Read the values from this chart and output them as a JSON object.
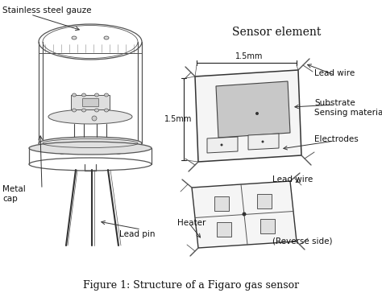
{
  "title": "Figure 1: Structure of a Figaro gas sensor",
  "title_fontsize": 9,
  "bg_color": "#ffffff",
  "sensor_element_label": "Sensor element",
  "label_stainless": "Stainless steel gauze",
  "label_metal_cap": "Metal\ncap",
  "label_lead_pin": "Lead pin",
  "label_lead_wire": "Lead wire",
  "label_substrate": "Substrate",
  "label_sensing": "Sensing material",
  "label_electrodes": "Electrodes",
  "label_dim_h": "1.5mm",
  "label_dim_v": "1.5mm",
  "label_heater": "Heater",
  "label_lead_wire2": "Lead wire",
  "label_reverse": "(Reverse side)"
}
